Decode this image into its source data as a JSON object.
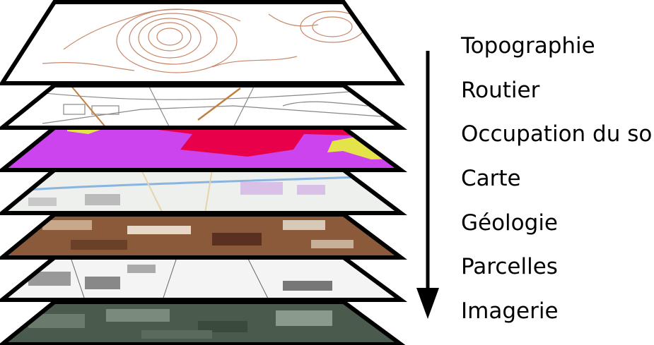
{
  "layers": [
    {
      "name": "Topographie",
      "style": "topo",
      "fill": "#ffffff"
    },
    {
      "name": "Routier",
      "style": "roads",
      "fill": "#ffffff"
    },
    {
      "name": "Occupation du sol",
      "style": "landuse",
      "fill": "#cc44ee"
    },
    {
      "name": "Carte",
      "style": "map",
      "fill": "#eef0ee"
    },
    {
      "name": "Géologie",
      "style": "geology",
      "fill": "#8a5a3a"
    },
    {
      "name": "Parcelles",
      "style": "parcels",
      "fill": "#f4f4f4"
    },
    {
      "name": "Imagerie",
      "style": "imagery",
      "fill": "#4a5a4c"
    }
  ],
  "colors": {
    "outline": "#000000",
    "contour": "#c8886a",
    "landuse_red": "#e8004a",
    "landuse_yellow": "#e4e44a",
    "road_orange": "#c08040"
  },
  "arrow": {
    "direction": "down",
    "icon": "down-arrow-icon"
  }
}
